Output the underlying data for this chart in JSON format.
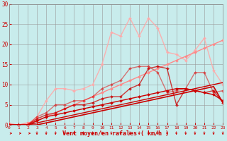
{
  "background_color": "#c8ecec",
  "grid_color": "#999999",
  "xlabel": "Vent moyen/en rafales ( km/h )",
  "xlabel_color": "#cc0000",
  "tick_color": "#cc0000",
  "xlim": [
    0,
    23
  ],
  "ylim": [
    0,
    30
  ],
  "yticks": [
    0,
    5,
    10,
    15,
    20,
    25,
    30
  ],
  "xticks": [
    0,
    1,
    2,
    3,
    4,
    5,
    6,
    7,
    8,
    9,
    10,
    11,
    12,
    13,
    14,
    15,
    16,
    17,
    18,
    19,
    20,
    21,
    22,
    23
  ],
  "series": [
    {
      "x": [
        0,
        1,
        2,
        3,
        4,
        5,
        6,
        7,
        8,
        9,
        10,
        11,
        12,
        13,
        14,
        15,
        16,
        17,
        18,
        19,
        20,
        21,
        22,
        23
      ],
      "y": [
        0,
        0,
        0,
        0,
        0.5,
        1,
        1.5,
        2,
        2.5,
        3,
        3.5,
        4,
        4.5,
        5,
        5.5,
        6,
        6.5,
        7,
        7.5,
        8,
        8.5,
        9,
        9.5,
        5.5
      ],
      "color": "#cc0000",
      "lw": 1.2,
      "marker": null,
      "markersize": 0,
      "alpha": 1.0,
      "zorder": 5
    },
    {
      "x": [
        0,
        1,
        2,
        3,
        4,
        5,
        6,
        7,
        8,
        9,
        10,
        11,
        12,
        13,
        14,
        15,
        16,
        17,
        18,
        19,
        20,
        21,
        22,
        23
      ],
      "y": [
        0,
        0,
        0,
        0.5,
        1,
        1.5,
        2,
        2.5,
        3,
        3.5,
        4,
        4.5,
        5,
        5.5,
        6,
        6.5,
        7,
        7.5,
        8,
        8.5,
        9,
        9.5,
        10,
        10.5
      ],
      "color": "#cc0000",
      "lw": 1.0,
      "marker": null,
      "markersize": 0,
      "alpha": 1.0,
      "zorder": 5
    },
    {
      "x": [
        0,
        1,
        2,
        3,
        4,
        5,
        6,
        7,
        8,
        9,
        10,
        11,
        12,
        13,
        14,
        15,
        16,
        17,
        18,
        19,
        20,
        21,
        22,
        23
      ],
      "y": [
        0,
        0,
        0,
        1,
        2,
        2.5,
        3,
        3.5,
        4,
        4.5,
        5,
        5.5,
        6,
        6.5,
        7,
        7.5,
        8,
        8.5,
        9,
        9,
        8.5,
        8,
        7.5,
        6
      ],
      "color": "#cc0000",
      "lw": 1.0,
      "marker": "D",
      "markersize": 2,
      "alpha": 1.0,
      "zorder": 6
    },
    {
      "x": [
        0,
        1,
        2,
        3,
        4,
        5,
        6,
        7,
        8,
        9,
        10,
        11,
        12,
        13,
        14,
        15,
        16,
        17,
        18,
        19,
        20,
        21,
        22,
        23
      ],
      "y": [
        0,
        0,
        0,
        1.5,
        2.5,
        3,
        4,
        5,
        5,
        5.5,
        6.5,
        7,
        7,
        9,
        10,
        14,
        14.5,
        14,
        5,
        9,
        8.5,
        8,
        8.5,
        5.5
      ],
      "color": "#cc0000",
      "lw": 1.0,
      "marker": "D",
      "markersize": 2,
      "alpha": 0.75,
      "zorder": 6
    },
    {
      "x": [
        0,
        1,
        2,
        3,
        4,
        5,
        6,
        7,
        8,
        9,
        10,
        11,
        12,
        13,
        14,
        15,
        16,
        17,
        18,
        19,
        20,
        21,
        22,
        23
      ],
      "y": [
        0,
        0,
        0,
        2,
        3,
        5,
        5,
        6,
        6,
        7,
        9,
        10,
        11,
        14,
        14.5,
        14.5,
        13,
        8,
        8.5,
        9,
        13,
        13,
        8,
        8.5
      ],
      "color": "#dd2222",
      "lw": 1.0,
      "marker": "D",
      "markersize": 2,
      "alpha": 0.6,
      "zorder": 4
    },
    {
      "x": [
        0,
        1,
        2,
        3,
        4,
        5,
        6,
        7,
        8,
        9,
        10,
        11,
        12,
        13,
        14,
        15,
        16,
        17,
        18,
        19,
        20,
        21,
        22,
        23
      ],
      "y": [
        0.3,
        0,
        0.5,
        1,
        2,
        3,
        4,
        5,
        6,
        7,
        8,
        9,
        10,
        11,
        12,
        13,
        14,
        15,
        16,
        17,
        18,
        19,
        20,
        21
      ],
      "color": "#ff8888",
      "lw": 1.0,
      "marker": "D",
      "markersize": 2,
      "alpha": 1.0,
      "zorder": 3
    },
    {
      "x": [
        0,
        1,
        2,
        3,
        4,
        5,
        6,
        7,
        8,
        9,
        10,
        11,
        12,
        13,
        14,
        15,
        16,
        17,
        18,
        19,
        20,
        21,
        22,
        23
      ],
      "y": [
        0,
        0,
        0,
        2,
        6,
        9,
        9,
        8.5,
        9,
        10,
        15,
        23,
        22,
        26.5,
        22,
        26.5,
        24,
        18,
        17.5,
        16,
        18.5,
        21.5,
        13.5,
        10
      ],
      "color": "#ffaaaa",
      "lw": 1.0,
      "marker": "D",
      "markersize": 2,
      "alpha": 0.9,
      "zorder": 2
    }
  ]
}
